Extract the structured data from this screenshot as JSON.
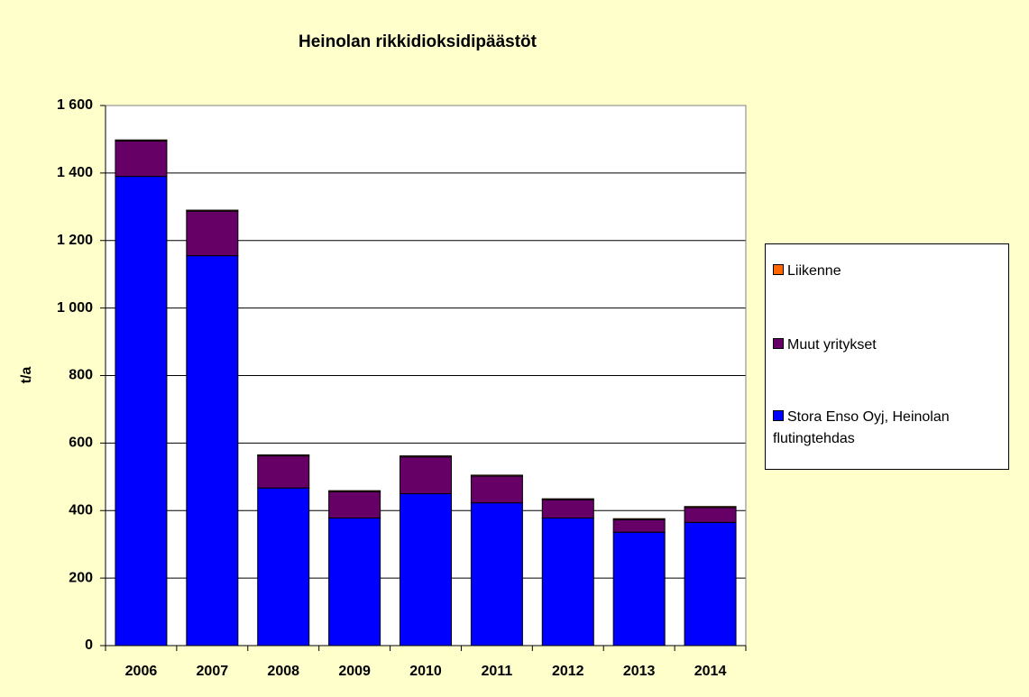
{
  "chart_data": {
    "type": "stacked_bar",
    "title": "Heinolan rikkidioksidipäästöt",
    "y_label": "t/a",
    "categories": [
      "2006",
      "2007",
      "2008",
      "2009",
      "2010",
      "2011",
      "2012",
      "2013",
      "2014"
    ],
    "series": [
      {
        "name": "Stora Enso Oyj, Heinolan flutingtehdas",
        "color": "#0000ff",
        "values": [
          1390,
          1155,
          467,
          378,
          450,
          423,
          378,
          336,
          365
        ]
      },
      {
        "name": "Muut yritykset",
        "color": "#660066",
        "values": [
          105,
          132,
          95,
          78,
          109,
          79,
          54,
          37,
          44
        ]
      },
      {
        "name": "Liikenne",
        "color": "#ff6600",
        "values": [
          3,
          3,
          3,
          3,
          3,
          3,
          3,
          3,
          3
        ]
      }
    ],
    "ylim": [
      0,
      1600
    ],
    "yticks": [
      0,
      200,
      400,
      600,
      800,
      {
        "value": 1000,
        "label": "1 000"
      },
      {
        "value": 1200,
        "label": "1 200"
      },
      {
        "value": 1400,
        "label": "1 400"
      },
      {
        "value": 1600,
        "label": "1 600"
      }
    ],
    "grid": true,
    "legend": "right"
  }
}
